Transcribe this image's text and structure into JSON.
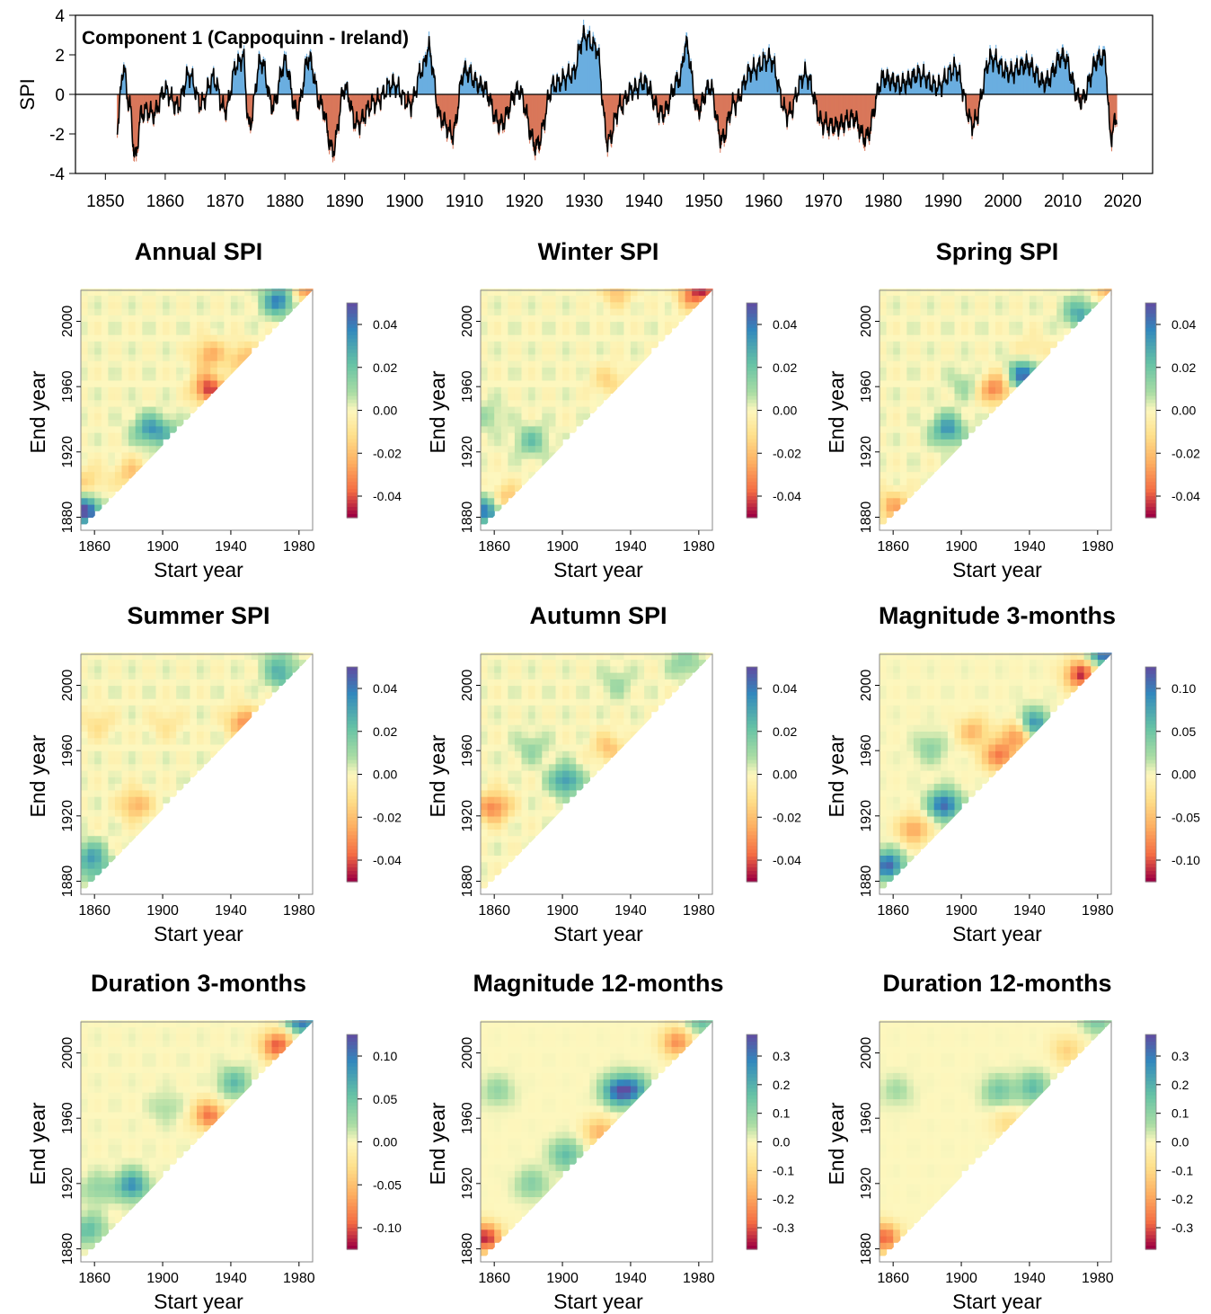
{
  "chart_data": [
    {
      "type": "area",
      "title": "Component 1 (Cappoquinn - Ireland)",
      "xlabel": "",
      "ylabel": "SPI",
      "xlim": [
        1845,
        2025
      ],
      "ylim": [
        -4,
        4
      ],
      "x_ticks": [
        1850,
        1860,
        1870,
        1880,
        1890,
        1900,
        1910,
        1920,
        1930,
        1940,
        1950,
        1960,
        1970,
        1980,
        1990,
        2000,
        2010,
        2020
      ],
      "y_ticks": [
        -4,
        -2,
        0,
        2,
        4
      ],
      "positive_color": "#6aaee0",
      "negative_color": "#d9775a",
      "line_color": "#000000",
      "series": [
        {
          "x": [
            1852,
            1853,
            1854,
            1855,
            1856,
            1857,
            1858,
            1860,
            1862,
            1864,
            1866,
            1868,
            1870,
            1872,
            1873,
            1874,
            1876,
            1878,
            1880,
            1882,
            1884,
            1886,
            1888,
            1890,
            1892,
            1895,
            1898,
            1901,
            1903,
            1904,
            1906,
            1908,
            1910,
            1913,
            1916,
            1919,
            1922,
            1925,
            1928,
            1930,
            1932,
            1934,
            1936,
            1938,
            1940,
            1943,
            1946,
            1947,
            1949,
            1951,
            1953,
            1955,
            1958,
            1961,
            1964,
            1967,
            1970,
            1972,
            1975,
            1977,
            1980,
            1983,
            1986,
            1989,
            1992,
            1995,
            1998,
            2001,
            2004,
            2007,
            2010,
            2013,
            2016,
            2017,
            2018,
            2019
          ],
          "values": [
            -1.5,
            1.3,
            -0.5,
            -3.2,
            -1.0,
            -0.8,
            -1.0,
            0.2,
            -0.6,
            1.0,
            -0.5,
            0.8,
            -0.8,
            1.5,
            1.9,
            -1.6,
            1.7,
            -0.6,
            1.6,
            -0.9,
            1.8,
            -0.5,
            -2.8,
            0.3,
            -1.5,
            -0.4,
            0.5,
            -0.5,
            1.3,
            2.3,
            -1.2,
            -2.0,
            1.2,
            0.4,
            -1.5,
            0.2,
            -2.6,
            0.5,
            1.0,
            2.9,
            2.4,
            -2.4,
            -0.6,
            0.2,
            0.6,
            -1.0,
            0.8,
            2.5,
            -0.8,
            0.4,
            -2.3,
            -0.5,
            1.2,
            1.8,
            -1.0,
            1.0,
            -1.5,
            -1.6,
            -1.2,
            -2.2,
            0.8,
            0.5,
            1.0,
            0.4,
            1.3,
            -1.5,
            1.8,
            1.1,
            1.5,
            0.6,
            1.9,
            -0.3,
            1.8,
            1.9,
            -2.1,
            -1.2
          ]
        }
      ]
    },
    {
      "type": "heatmap",
      "title": "Annual SPI",
      "xlabel": "Start year",
      "ylabel": "End year",
      "x_ticks": [
        1860,
        1900,
        1940,
        1980
      ],
      "y_ticks": [
        1880,
        1920,
        1960,
        2000
      ],
      "colorbar_ticks": [
        "0.04",
        "0.02",
        "0.00",
        "-0.02",
        "-0.04"
      ],
      "colorbar_range": [
        -0.05,
        0.05
      ],
      "features": [
        [
          1853,
          1882,
          0.05
        ],
        [
          1925,
          1957,
          -0.045
        ],
        [
          1890,
          1932,
          0.03
        ],
        [
          1966,
          2011,
          0.04
        ],
        [
          1945,
          1976,
          -0.02
        ],
        [
          1880,
          1905,
          -0.02
        ],
        [
          1855,
          1900,
          -0.015
        ],
        [
          1983,
          2018,
          -0.03
        ],
        [
          1925,
          1978,
          -0.025
        ],
        [
          1900,
          1930,
          0.015
        ]
      ]
    },
    {
      "type": "heatmap",
      "title": "Winter SPI",
      "xlabel": "Start year",
      "ylabel": "End year",
      "x_ticks": [
        1860,
        1900,
        1940,
        1980
      ],
      "y_ticks": [
        1880,
        1920,
        1960,
        2000
      ],
      "colorbar_ticks": [
        "0.04",
        "0.02",
        "0.00",
        "-0.02",
        "-0.04"
      ],
      "colorbar_range": [
        -0.05,
        0.05
      ],
      "features": [
        [
          1853,
          1882,
          0.04
        ],
        [
          1880,
          1925,
          0.02
        ],
        [
          1925,
          1962,
          -0.015
        ],
        [
          1930,
          2017,
          -0.02
        ],
        [
          1975,
          2015,
          -0.035
        ],
        [
          1985,
          2019,
          -0.03
        ],
        [
          1865,
          1890,
          -0.02
        ],
        [
          1855,
          1940,
          0.01
        ]
      ]
    },
    {
      "type": "heatmap",
      "title": "Spring SPI",
      "xlabel": "Start year",
      "ylabel": "End year",
      "x_ticks": [
        1860,
        1900,
        1940,
        1980
      ],
      "y_ticks": [
        1880,
        1920,
        1960,
        2000
      ],
      "colorbar_ticks": [
        "0.04",
        "0.02",
        "0.00",
        "-0.02",
        "-0.04"
      ],
      "colorbar_range": [
        -0.05,
        0.05
      ],
      "features": [
        [
          1935,
          1965,
          0.045
        ],
        [
          1890,
          1932,
          0.035
        ],
        [
          1968,
          2003,
          0.03
        ],
        [
          1918,
          1957,
          -0.035
        ],
        [
          1858,
          1885,
          -0.025
        ],
        [
          1985,
          2019,
          -0.025
        ],
        [
          1900,
          1960,
          0.01
        ],
        [
          1940,
          1980,
          -0.01
        ]
      ]
    },
    {
      "type": "heatmap",
      "title": "Summer SPI",
      "xlabel": "Start year",
      "ylabel": "End year",
      "x_ticks": [
        1860,
        1900,
        1940,
        1980
      ],
      "y_ticks": [
        1880,
        1920,
        1960,
        2000
      ],
      "colorbar_ticks": [
        "0.04",
        "0.02",
        "0.00",
        "-0.02",
        "-0.04"
      ],
      "colorbar_range": [
        -0.05,
        0.05
      ],
      "features": [
        [
          1856,
          1893,
          0.03
        ],
        [
          1968,
          2005,
          0.025
        ],
        [
          1945,
          1976,
          -0.03
        ],
        [
          1882,
          1925,
          -0.025
        ],
        [
          1862,
          1880,
          0.02
        ],
        [
          1860,
          1975,
          -0.012
        ],
        [
          1900,
          1975,
          -0.01
        ],
        [
          1965,
          2015,
          0.01
        ]
      ]
    },
    {
      "type": "heatmap",
      "title": "Autumn SPI",
      "xlabel": "Start year",
      "ylabel": "End year",
      "x_ticks": [
        1860,
        1900,
        1940,
        1980
      ],
      "y_ticks": [
        1880,
        1920,
        1960,
        2000
      ],
      "colorbar_ticks": [
        "0.04",
        "0.02",
        "0.00",
        "-0.02",
        "-0.04"
      ],
      "colorbar_range": [
        -0.05,
        0.05
      ],
      "features": [
        [
          1900,
          1940,
          0.035
        ],
        [
          1860,
          1925,
          -0.02
        ],
        [
          1925,
          1960,
          -0.02
        ],
        [
          1855,
          1922,
          -0.018
        ],
        [
          1880,
          1960,
          0.012
        ],
        [
          1930,
          2000,
          0.01
        ],
        [
          1970,
          2012,
          0.015
        ]
      ]
    },
    {
      "type": "heatmap",
      "title": "Magnitude 3-months",
      "xlabel": "Start year",
      "ylabel": "End year",
      "x_ticks": [
        1860,
        1900,
        1940,
        1980
      ],
      "y_ticks": [
        1880,
        1920,
        1960,
        2000
      ],
      "colorbar_ticks": [
        "0.10",
        "0.05",
        "0.00",
        "-0.05",
        "-0.10"
      ],
      "colorbar_range": [
        -0.11,
        0.11
      ],
      "features": [
        [
          1855,
          1888,
          0.1
        ],
        [
          1888,
          1925,
          0.1
        ],
        [
          1920,
          1955,
          -0.08
        ],
        [
          1932,
          1968,
          -0.08
        ],
        [
          1940,
          1974,
          0.09
        ],
        [
          1968,
          2005,
          -0.1
        ],
        [
          1982,
          2019,
          0.11
        ],
        [
          1870,
          1910,
          -0.06
        ],
        [
          1905,
          1970,
          -0.05
        ],
        [
          1880,
          1960,
          0.03
        ]
      ]
    },
    {
      "type": "heatmap",
      "title": "Duration 3-months",
      "xlabel": "Start year",
      "ylabel": "End year",
      "x_ticks": [
        1860,
        1900,
        1940,
        1980
      ],
      "y_ticks": [
        1880,
        1920,
        1960,
        2000
      ],
      "colorbar_ticks": [
        "0.10",
        "0.05",
        "0.00",
        "-0.05",
        "-0.10"
      ],
      "colorbar_range": [
        -0.11,
        0.11
      ],
      "features": [
        [
          1880,
          1917,
          0.08
        ],
        [
          1855,
          1890,
          0.05
        ],
        [
          1925,
          1960,
          -0.08
        ],
        [
          1940,
          1980,
          0.05
        ],
        [
          1965,
          2003,
          -0.09
        ],
        [
          1980,
          2019,
          0.1
        ],
        [
          1900,
          1965,
          0.02
        ],
        [
          1860,
          1915,
          0.03
        ]
      ]
    },
    {
      "type": "heatmap",
      "title": "Magnitude 12-months",
      "xlabel": "Start year",
      "ylabel": "End year",
      "x_ticks": [
        1860,
        1900,
        1940,
        1980
      ],
      "y_ticks": [
        1880,
        1920,
        1960,
        2000
      ],
      "colorbar_ticks": [
        "0.3",
        "0.2",
        "0.1",
        "0.0",
        "-0.1",
        "-0.2",
        "-0.3"
      ],
      "colorbar_range": [
        -0.32,
        0.32
      ],
      "features": [
        [
          1853,
          1885,
          -0.3
        ],
        [
          1930,
          1975,
          0.25
        ],
        [
          1940,
          1976,
          0.2
        ],
        [
          1965,
          2005,
          -0.2
        ],
        [
          1980,
          2019,
          0.15
        ],
        [
          1900,
          1936,
          0.15
        ],
        [
          1880,
          1918,
          0.1
        ],
        [
          1920,
          1950,
          -0.15
        ],
        [
          1860,
          1975,
          0.08
        ]
      ]
    },
    {
      "type": "heatmap",
      "title": "Duration 12-months",
      "xlabel": "Start year",
      "ylabel": "End year",
      "x_ticks": [
        1860,
        1900,
        1940,
        1980
      ],
      "y_ticks": [
        1880,
        1920,
        1960,
        2000
      ],
      "colorbar_ticks": [
        "0.3",
        "0.2",
        "0.1",
        "0.0",
        "-0.1",
        "-0.2",
        "-0.3"
      ],
      "colorbar_range": [
        -0.32,
        0.32
      ],
      "features": [
        [
          1853,
          1885,
          -0.25
        ],
        [
          1920,
          1975,
          0.12
        ],
        [
          1940,
          1977,
          0.15
        ],
        [
          1960,
          2000,
          -0.1
        ],
        [
          1978,
          2019,
          0.12
        ],
        [
          1925,
          1955,
          -0.08
        ],
        [
          1860,
          1975,
          0.06
        ]
      ]
    }
  ]
}
